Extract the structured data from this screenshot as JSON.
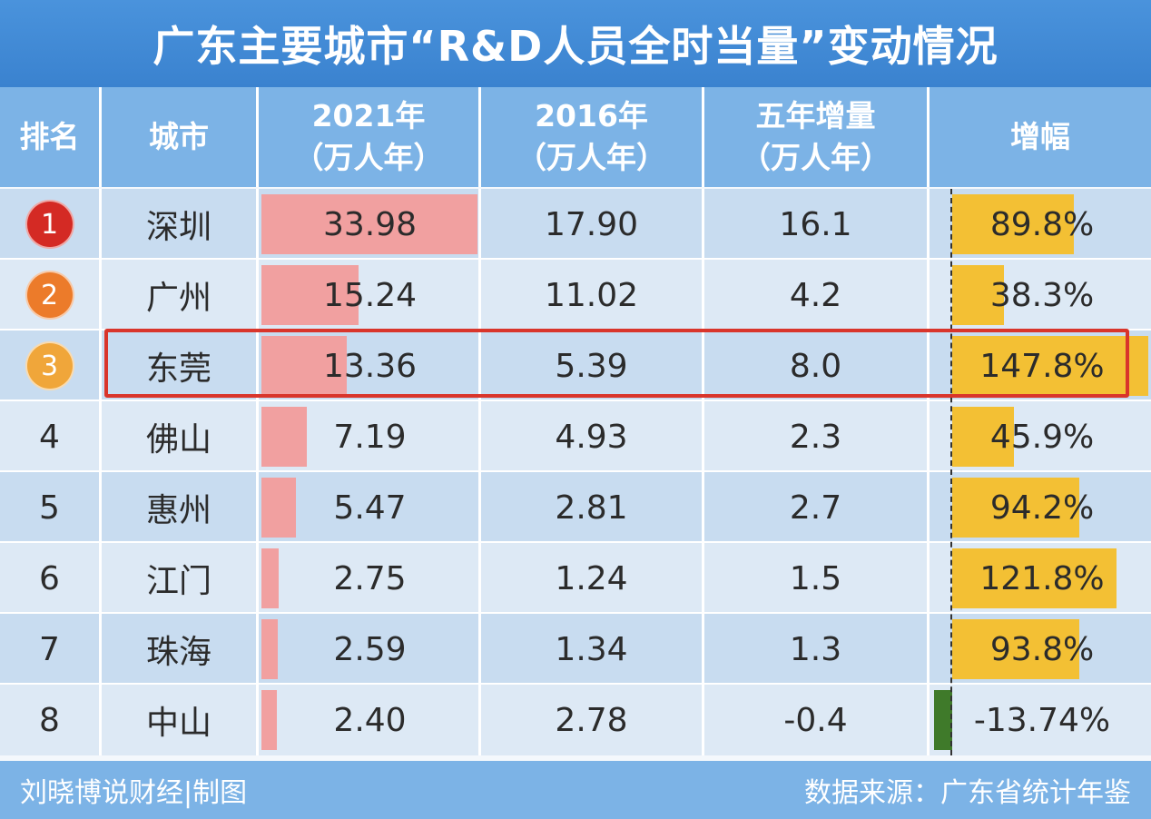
{
  "title": "广东主要城市“R&D人员全时当量”变动情况",
  "header": {
    "rank": "排名",
    "city": "城市",
    "y2021": "2021年",
    "y2021_unit": "（万人年）",
    "y2016": "2016年",
    "y2016_unit": "（万人年）",
    "increase": "五年增量",
    "increase_unit": "（万人年）",
    "growth": "增幅"
  },
  "colors": {
    "title_bg": "#3a82cf",
    "header_bg": "#7cb3e6",
    "bar_2021": "#f1a0a0",
    "bar_growth": "#f3c034",
    "bar_negative": "#3f7a2a",
    "highlight": "#d9352b",
    "badge_1": "#d42a24",
    "badge_2": "#ec7b2a",
    "badge_3": "#f0a63a"
  },
  "rows": [
    {
      "rank": "1",
      "city": "深圳",
      "v2021": "33.98",
      "v2016": "17.90",
      "inc": "16.1",
      "growth": "89.8%",
      "badge": true
    },
    {
      "rank": "2",
      "city": "广州",
      "v2021": "15.24",
      "v2016": "11.02",
      "inc": "4.2",
      "growth": "38.3%",
      "badge": true
    },
    {
      "rank": "3",
      "city": "东莞",
      "v2021": "13.36",
      "v2016": "5.39",
      "inc": "8.0",
      "growth": "147.8%",
      "badge": true
    },
    {
      "rank": "4",
      "city": "佛山",
      "v2021": "7.19",
      "v2016": "4.93",
      "inc": "2.3",
      "growth": "45.9%",
      "badge": false
    },
    {
      "rank": "5",
      "city": "惠州",
      "v2021": "5.47",
      "v2016": "2.81",
      "inc": "2.7",
      "growth": "94.2%",
      "badge": false
    },
    {
      "rank": "6",
      "city": "江门",
      "v2021": "2.75",
      "v2016": "1.24",
      "inc": "1.5",
      "growth": "121.8%",
      "badge": false
    },
    {
      "rank": "7",
      "city": "珠海",
      "v2021": "2.59",
      "v2016": "1.34",
      "inc": "1.3",
      "growth": "93.8%",
      "badge": false
    },
    {
      "rank": "8",
      "city": "中山",
      "v2021": "2.40",
      "v2016": "2.78",
      "inc": "-0.4",
      "growth": "-13.74%",
      "badge": false
    }
  ],
  "highlighted_city": "东莞",
  "footer": {
    "credit": "刘晓博说财经|制图",
    "source": "数据来源：广东省统计年鉴"
  },
  "chart_data": {
    "type": "table",
    "title": "广东主要城市“R&D人员全时当量”变动情况",
    "columns": [
      "排名",
      "城市",
      "2021年（万人年）",
      "2016年（万人年）",
      "五年增量（万人年）",
      "增幅"
    ],
    "categories": [
      "深圳",
      "广州",
      "东莞",
      "佛山",
      "惠州",
      "江门",
      "珠海",
      "中山"
    ],
    "series": [
      {
        "name": "2021年",
        "values": [
          33.98,
          15.24,
          13.36,
          7.19,
          5.47,
          2.75,
          2.59,
          2.4
        ]
      },
      {
        "name": "2016年",
        "values": [
          17.9,
          11.02,
          5.39,
          4.93,
          2.81,
          1.24,
          1.34,
          2.78
        ]
      },
      {
        "name": "五年增量",
        "values": [
          16.1,
          4.2,
          8.0,
          2.3,
          2.7,
          1.5,
          1.3,
          -0.4
        ]
      },
      {
        "name": "增幅",
        "values": [
          89.8,
          38.3,
          147.8,
          45.9,
          94.2,
          121.8,
          93.8,
          -13.74
        ]
      }
    ]
  }
}
